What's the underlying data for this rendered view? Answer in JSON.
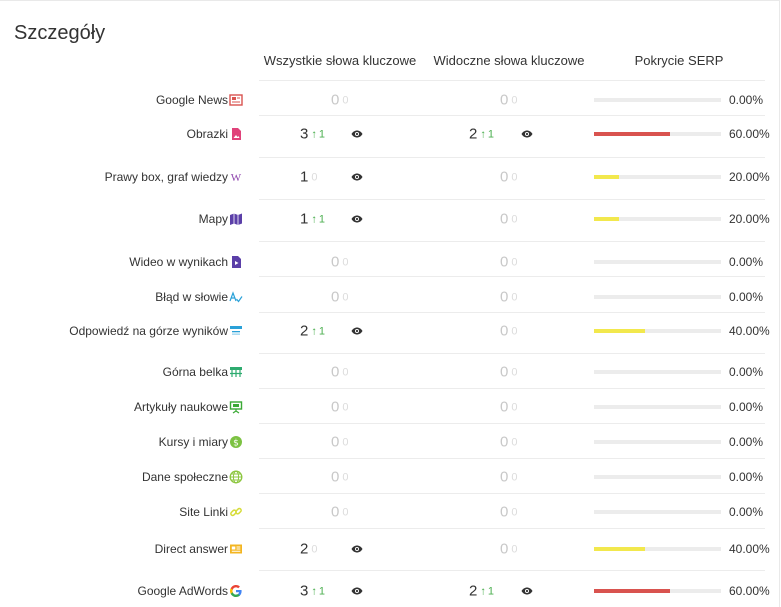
{
  "panel": {
    "title": "Szczegóły"
  },
  "columns": {
    "all": "Wszystkie słowa kluczowe",
    "visible": "Widoczne słowa kluczowe",
    "serp": "Pokrycie SERP"
  },
  "colors": {
    "red": "#d9534f",
    "yellow": "#f2e84d",
    "green": "#4caf50"
  },
  "rows": [
    {
      "label": "Google News",
      "icon": "news-icon",
      "all": {
        "value": "0",
        "change": "0",
        "trend": "none"
      },
      "visible": {
        "value": "0",
        "change": "0",
        "trend": "none"
      },
      "coverage": 0.0,
      "coverage_label": "0.00%",
      "bar_color": "none"
    },
    {
      "label": "Obrazki",
      "icon": "image-icon",
      "all": {
        "value": "3",
        "change": "1",
        "trend": "up"
      },
      "visible": {
        "value": "2",
        "change": "1",
        "trend": "up"
      },
      "coverage": 0.6,
      "coverage_label": "60.00%",
      "bar_color": "red"
    },
    {
      "label": "Prawy box, graf wiedzy",
      "icon": "wikipedia-icon",
      "all": {
        "value": "1",
        "change": "0",
        "trend": "flat"
      },
      "visible": {
        "value": "0",
        "change": "0",
        "trend": "none"
      },
      "coverage": 0.2,
      "coverage_label": "20.00%",
      "bar_color": "yellow"
    },
    {
      "label": "Mapy",
      "icon": "map-icon",
      "all": {
        "value": "1",
        "change": "1",
        "trend": "up"
      },
      "visible": {
        "value": "0",
        "change": "0",
        "trend": "none"
      },
      "coverage": 0.2,
      "coverage_label": "20.00%",
      "bar_color": "yellow"
    },
    {
      "label": "Wideo w wynikach",
      "icon": "video-file-icon",
      "all": {
        "value": "0",
        "change": "0",
        "trend": "none"
      },
      "visible": {
        "value": "0",
        "change": "0",
        "trend": "none"
      },
      "coverage": 0.0,
      "coverage_label": "0.00%",
      "bar_color": "none"
    },
    {
      "label": "Błąd w słowie",
      "icon": "spellcheck-icon",
      "all": {
        "value": "0",
        "change": "0",
        "trend": "none"
      },
      "visible": {
        "value": "0",
        "change": "0",
        "trend": "none"
      },
      "coverage": 0.0,
      "coverage_label": "0.00%",
      "bar_color": "none"
    },
    {
      "label": "Odpowiedź na górze wyników",
      "icon": "answer-top-icon",
      "all": {
        "value": "2",
        "change": "1",
        "trend": "up"
      },
      "visible": {
        "value": "0",
        "change": "0",
        "trend": "none"
      },
      "coverage": 0.4,
      "coverage_label": "40.00%",
      "bar_color": "yellow"
    },
    {
      "label": "Górna belka",
      "icon": "top-bar-icon",
      "all": {
        "value": "0",
        "change": "0",
        "trend": "none"
      },
      "visible": {
        "value": "0",
        "change": "0",
        "trend": "none"
      },
      "coverage": 0.0,
      "coverage_label": "0.00%",
      "bar_color": "none"
    },
    {
      "label": "Artykuły naukowe",
      "icon": "presentation-icon",
      "all": {
        "value": "0",
        "change": "0",
        "trend": "none"
      },
      "visible": {
        "value": "0",
        "change": "0",
        "trend": "none"
      },
      "coverage": 0.0,
      "coverage_label": "0.00%",
      "bar_color": "none"
    },
    {
      "label": "Kursy i miary",
      "icon": "currency-icon",
      "all": {
        "value": "0",
        "change": "0",
        "trend": "none"
      },
      "visible": {
        "value": "0",
        "change": "0",
        "trend": "none"
      },
      "coverage": 0.0,
      "coverage_label": "0.00%",
      "bar_color": "none"
    },
    {
      "label": "Dane społeczne",
      "icon": "globe-icon",
      "all": {
        "value": "0",
        "change": "0",
        "trend": "none"
      },
      "visible": {
        "value": "0",
        "change": "0",
        "trend": "none"
      },
      "coverage": 0.0,
      "coverage_label": "0.00%",
      "bar_color": "none"
    },
    {
      "label": "Site Linki",
      "icon": "link-icon",
      "all": {
        "value": "0",
        "change": "0",
        "trend": "none"
      },
      "visible": {
        "value": "0",
        "change": "0",
        "trend": "none"
      },
      "coverage": 0.0,
      "coverage_label": "0.00%",
      "bar_color": "none"
    },
    {
      "label": "Direct answer",
      "icon": "direct-answer-icon",
      "all": {
        "value": "2",
        "change": "0",
        "trend": "flat"
      },
      "visible": {
        "value": "0",
        "change": "0",
        "trend": "none"
      },
      "coverage": 0.4,
      "coverage_label": "40.00%",
      "bar_color": "yellow"
    },
    {
      "label": "Google AdWords",
      "icon": "google-icon",
      "all": {
        "value": "3",
        "change": "1",
        "trend": "up"
      },
      "visible": {
        "value": "2",
        "change": "1",
        "trend": "up"
      },
      "coverage": 0.6,
      "coverage_label": "60.00%",
      "bar_color": "red"
    }
  ]
}
